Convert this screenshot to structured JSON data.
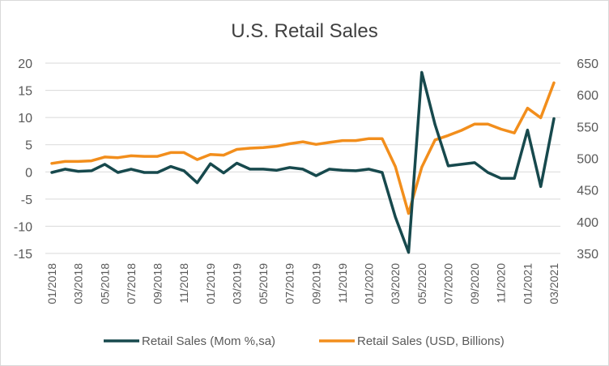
{
  "chart_data": {
    "type": "line",
    "title": "U.S. Retail Sales",
    "x": [
      "01/2018",
      "02/2018",
      "03/2018",
      "04/2018",
      "05/2018",
      "06/2018",
      "07/2018",
      "08/2018",
      "09/2018",
      "10/2018",
      "11/2018",
      "12/2018",
      "01/2019",
      "02/2019",
      "03/2019",
      "04/2019",
      "05/2019",
      "06/2019",
      "07/2019",
      "08/2019",
      "09/2019",
      "10/2019",
      "11/2019",
      "12/2019",
      "01/2020",
      "02/2020",
      "03/2020",
      "04/2020",
      "05/2020",
      "06/2020",
      "07/2020",
      "08/2020",
      "09/2020",
      "10/2020",
      "11/2020",
      "12/2020",
      "01/2021",
      "02/2021",
      "03/2021"
    ],
    "x_tick_labels": [
      "01/2018",
      "03/2018",
      "05/2018",
      "07/2018",
      "09/2018",
      "11/2018",
      "01/2019",
      "03/2019",
      "05/2019",
      "07/2019",
      "09/2019",
      "11/2019",
      "01/2020",
      "03/2020",
      "05/2020",
      "07/2020",
      "09/2020",
      "11/2020",
      "01/2021",
      "03/2021"
    ],
    "y_left": {
      "ylim": [
        -15,
        20
      ],
      "ticks": [
        -15,
        -10,
        -5,
        0,
        5,
        10,
        15,
        20
      ]
    },
    "y_right": {
      "ylim": [
        350,
        650
      ],
      "ticks": [
        350,
        400,
        450,
        500,
        550,
        600,
        650
      ]
    },
    "grid": "horizontal",
    "legend_position": "bottom",
    "series": [
      {
        "name": "Retail Sales (Mom %,sa)",
        "axis": "left",
        "color": "#17494d",
        "values": [
          -0.1,
          0.5,
          0.1,
          0.2,
          1.4,
          -0.1,
          0.5,
          -0.1,
          -0.1,
          1.0,
          0.2,
          -2.0,
          1.5,
          -0.2,
          1.6,
          0.5,
          0.5,
          0.3,
          0.8,
          0.5,
          -0.7,
          0.5,
          0.3,
          0.2,
          0.5,
          -0.1,
          -8.3,
          -14.8,
          18.3,
          8.7,
          1.1,
          1.4,
          1.7,
          -0.1,
          -1.2,
          -1.2,
          7.7,
          -2.7,
          9.8
        ]
      },
      {
        "name": "Retail Sales (USD, Billions)",
        "axis": "right",
        "color": "#f28e1c",
        "values": [
          492,
          495,
          495,
          496,
          502,
          501,
          504,
          503,
          503,
          509,
          509,
          498,
          506,
          505,
          514,
          516,
          517,
          519,
          523,
          526,
          522,
          525,
          528,
          528,
          531,
          531,
          487,
          413,
          486,
          529,
          536,
          544,
          554,
          554,
          546,
          540,
          579,
          564,
          619
        ]
      }
    ]
  }
}
